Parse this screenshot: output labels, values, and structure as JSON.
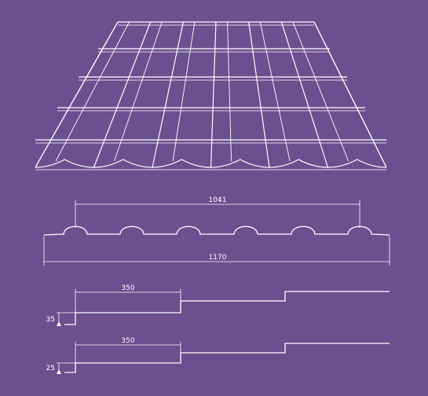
{
  "colors": {
    "background": "#6b4f8f",
    "line": "#ffffff"
  },
  "roof_illustration": {
    "description_icon": "metal-roof-tile-sheet-icon"
  },
  "profile": {
    "effective_width": "1041",
    "total_width": "1170"
  },
  "step_profile_35": {
    "step_length": "350",
    "step_height": "35"
  },
  "step_profile_25": {
    "step_length": "350",
    "step_height": "25"
  }
}
